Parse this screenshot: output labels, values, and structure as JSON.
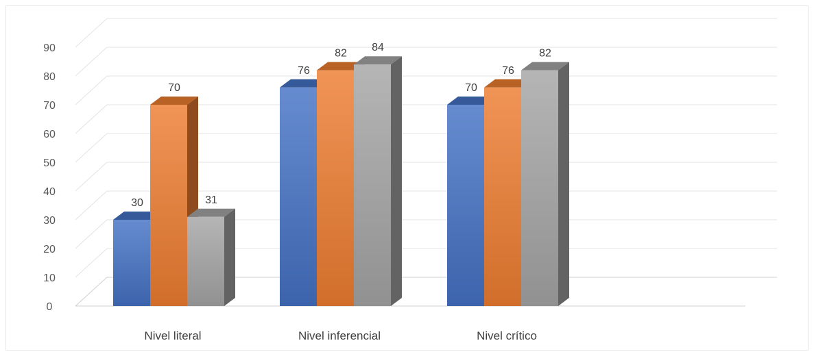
{
  "chart_data": {
    "type": "bar",
    "title": "",
    "xlabel": "",
    "ylabel": "",
    "categories": [
      "Nivel literal",
      "Nivel inferencial",
      "Nivel crítico"
    ],
    "series": [
      {
        "values": [
          30,
          76,
          70
        ],
        "color": "#4472C4"
      },
      {
        "values": [
          70,
          82,
          76
        ],
        "color": "#ED7D31"
      },
      {
        "values": [
          31,
          84,
          82
        ],
        "color": "#A5A5A5"
      }
    ],
    "ylim": [
      0,
      90
    ],
    "yticks": [
      "0",
      "10",
      "20",
      "30",
      "40",
      "50",
      "60",
      "70",
      "80",
      "90"
    ],
    "grid": true,
    "legend": "none",
    "style": "3d-clustered-column"
  }
}
